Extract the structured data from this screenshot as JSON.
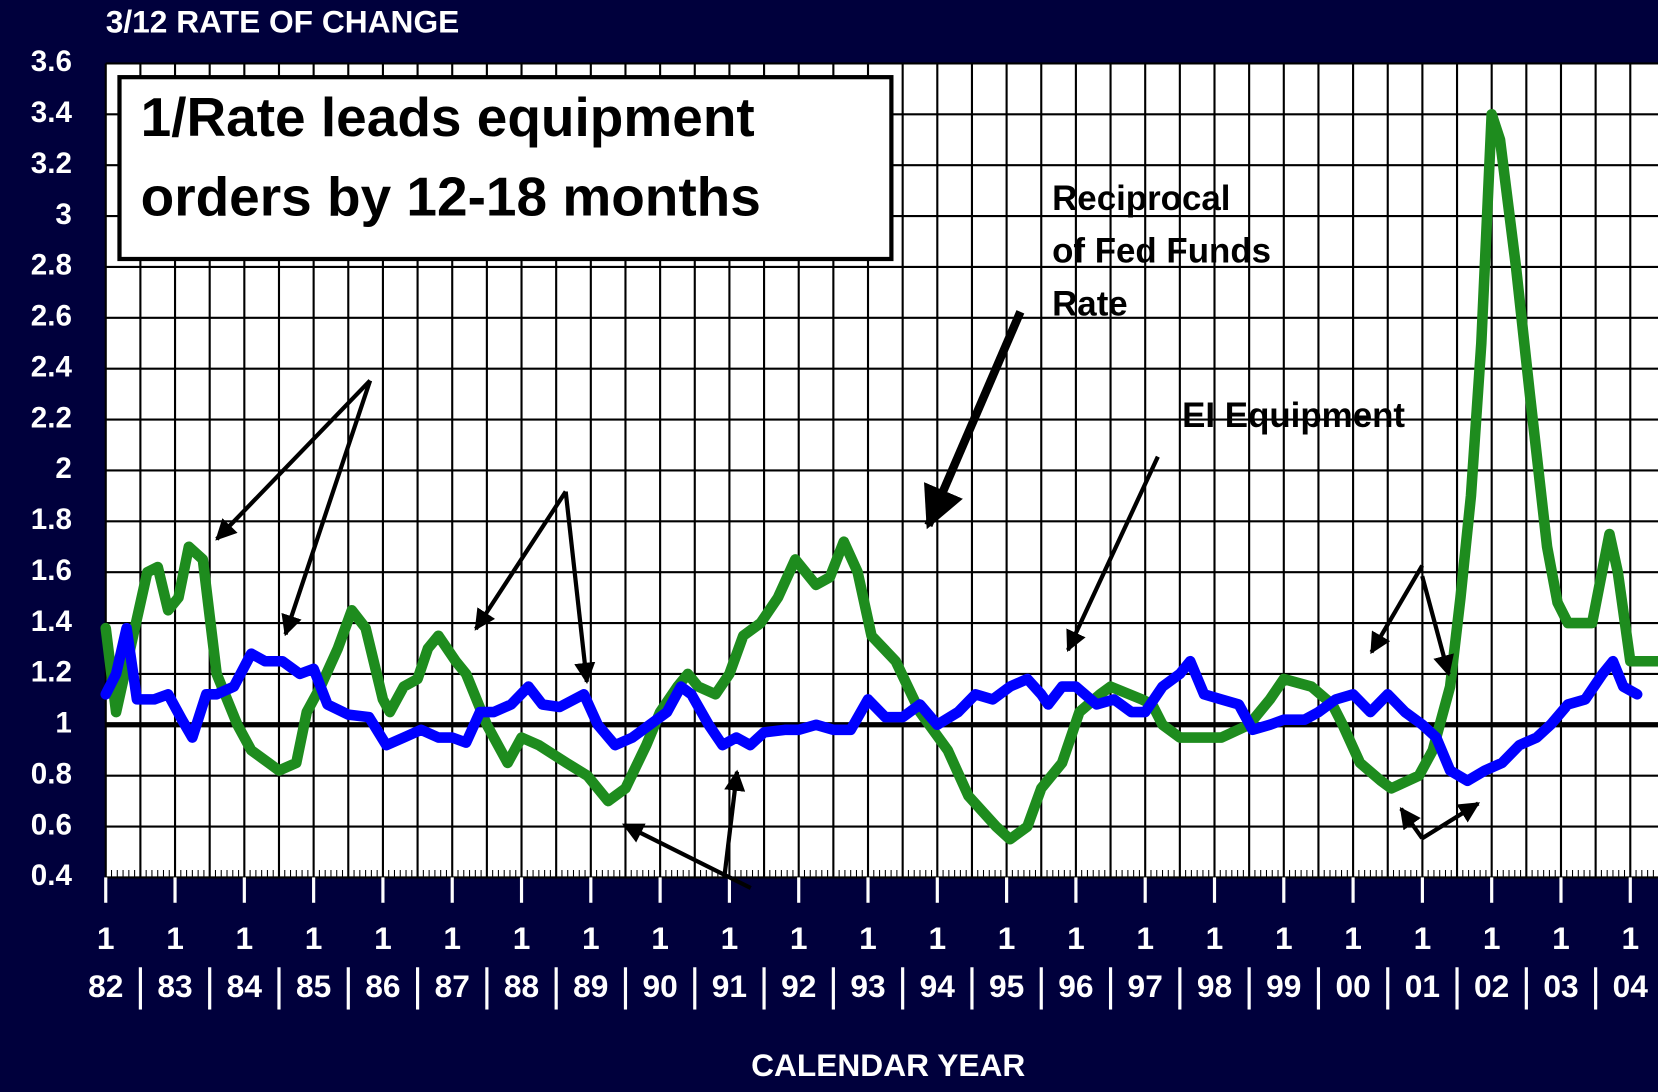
{
  "chart_data": {
    "type": "line",
    "title": "3/12 RATE OF CHANGE",
    "x_label": "CALENDAR YEAR",
    "xtick_month_label": "1",
    "annotation_lines": [
      "1/Rate leads equipment",
      "orders by 12-18 months"
    ],
    "xlim": [
      1982,
      2004.4
    ],
    "xticks": [
      {
        "value": 1982,
        "label": "82"
      },
      {
        "value": 1983,
        "label": "83"
      },
      {
        "value": 1984,
        "label": "84"
      },
      {
        "value": 1985,
        "label": "85"
      },
      {
        "value": 1986,
        "label": "86"
      },
      {
        "value": 1987,
        "label": "87"
      },
      {
        "value": 1988,
        "label": "88"
      },
      {
        "value": 1989,
        "label": "89"
      },
      {
        "value": 1990,
        "label": "90"
      },
      {
        "value": 1991,
        "label": "91"
      },
      {
        "value": 1992,
        "label": "92"
      },
      {
        "value": 1993,
        "label": "93"
      },
      {
        "value": 1994,
        "label": "94"
      },
      {
        "value": 1995,
        "label": "95"
      },
      {
        "value": 1996,
        "label": "96"
      },
      {
        "value": 1997,
        "label": "97"
      },
      {
        "value": 1998,
        "label": "98"
      },
      {
        "value": 1999,
        "label": "99"
      },
      {
        "value": 2000,
        "label": "00"
      },
      {
        "value": 2001,
        "label": "01"
      },
      {
        "value": 2002,
        "label": "02"
      },
      {
        "value": 2003,
        "label": "03"
      },
      {
        "value": 2004,
        "label": "04"
      }
    ],
    "ylim": [
      0.4,
      3.6
    ],
    "yticks": [
      0.4,
      0.6,
      0.8,
      1,
      1.2,
      1.4,
      1.6,
      1.8,
      2,
      2.2,
      2.4,
      2.6,
      2.8,
      3,
      3.2,
      3.4,
      3.6
    ],
    "grid": true,
    "reference_line": 1,
    "series": [
      {
        "name": "Reciprocal of Fed Funds Rate",
        "color": "#1e8c1e",
        "x": [
          1982.0,
          1982.15,
          1982.6,
          1982.75,
          1982.9,
          1983.05,
          1983.2,
          1983.4,
          1983.6,
          1983.9,
          1984.1,
          1984.35,
          1984.5,
          1984.75,
          1984.9,
          1985.1,
          1985.35,
          1985.55,
          1985.75,
          1986.0,
          1986.1,
          1986.3,
          1986.5,
          1986.65,
          1986.8,
          1987.05,
          1987.2,
          1987.5,
          1987.8,
          1988.0,
          1988.25,
          1988.65,
          1988.95,
          1989.25,
          1989.5,
          1989.8,
          1990.0,
          1990.25,
          1990.4,
          1990.55,
          1990.8,
          1991.0,
          1991.2,
          1991.45,
          1991.7,
          1991.95,
          1992.25,
          1992.45,
          1992.65,
          1992.85,
          1993.05,
          1993.4,
          1993.75,
          1994.15,
          1994.45,
          1994.85,
          1995.05,
          1995.3,
          1995.5,
          1995.8,
          1996.05,
          1996.35,
          1996.5,
          1996.95,
          1997.1,
          1997.25,
          1997.5,
          1998.1,
          1998.5,
          1998.8,
          1999.0,
          1999.4,
          1999.7,
          1999.85,
          2000.1,
          2000.4,
          2000.55,
          2000.95,
          2001.15,
          2001.4,
          2001.55,
          2001.7,
          2001.85,
          2002.0,
          2002.12,
          2002.35,
          2002.55,
          2002.8,
          2002.95,
          2003.1,
          2003.45,
          2003.7,
          2003.82,
          2004.0,
          2004.4
        ],
        "values": [
          1.38,
          1.05,
          1.6,
          1.62,
          1.45,
          1.5,
          1.7,
          1.65,
          1.2,
          1.0,
          0.9,
          0.85,
          0.82,
          0.85,
          1.05,
          1.15,
          1.3,
          1.45,
          1.38,
          1.1,
          1.05,
          1.15,
          1.18,
          1.3,
          1.35,
          1.25,
          1.2,
          1.0,
          0.85,
          0.95,
          0.92,
          0.85,
          0.8,
          0.7,
          0.75,
          0.92,
          1.05,
          1.15,
          1.2,
          1.15,
          1.12,
          1.2,
          1.35,
          1.4,
          1.5,
          1.65,
          1.55,
          1.58,
          1.72,
          1.6,
          1.35,
          1.25,
          1.05,
          0.9,
          0.72,
          0.6,
          0.55,
          0.6,
          0.75,
          0.85,
          1.05,
          1.12,
          1.15,
          1.1,
          1.08,
          1.0,
          0.95,
          0.95,
          1.0,
          1.1,
          1.18,
          1.15,
          1.08,
          1.0,
          0.85,
          0.78,
          0.75,
          0.8,
          0.9,
          1.15,
          1.5,
          1.9,
          2.5,
          3.4,
          3.3,
          2.8,
          2.3,
          1.7,
          1.48,
          1.4,
          1.4,
          1.75,
          1.6,
          1.25,
          1.25
        ]
      },
      {
        "name": "EI Equipment",
        "color": "#0000ff",
        "x": [
          1982.0,
          1982.15,
          1982.3,
          1982.45,
          1982.7,
          1982.9,
          1983.1,
          1983.25,
          1983.45,
          1983.6,
          1983.85,
          1984.1,
          1984.3,
          1984.55,
          1984.8,
          1985.0,
          1985.2,
          1985.5,
          1985.8,
          1986.05,
          1986.3,
          1986.55,
          1986.8,
          1987.0,
          1987.2,
          1987.4,
          1987.6,
          1987.85,
          1988.1,
          1988.3,
          1988.55,
          1988.9,
          1989.1,
          1989.35,
          1989.6,
          1989.85,
          1990.1,
          1990.3,
          1990.45,
          1990.7,
          1990.9,
          1991.1,
          1991.3,
          1991.5,
          1991.8,
          1992.0,
          1992.25,
          1992.5,
          1992.75,
          1993.0,
          1993.25,
          1993.5,
          1993.75,
          1994.0,
          1994.3,
          1994.55,
          1994.8,
          1995.05,
          1995.3,
          1995.5,
          1995.6,
          1995.8,
          1996.0,
          1996.3,
          1996.55,
          1996.8,
          1997.0,
          1997.25,
          1997.5,
          1997.65,
          1997.85,
          1998.1,
          1998.35,
          1998.55,
          1998.8,
          1999.0,
          1999.3,
          1999.5,
          1999.75,
          2000.0,
          2000.25,
          2000.5,
          2000.75,
          2001.0,
          2001.2,
          2001.4,
          2001.65,
          2001.9,
          2002.15,
          2002.4,
          2002.65,
          2002.85,
          2003.1,
          2003.35,
          2003.6,
          2003.75,
          2003.9,
          2004.1
        ],
        "values": [
          1.12,
          1.2,
          1.38,
          1.1,
          1.1,
          1.12,
          1.02,
          0.95,
          1.12,
          1.12,
          1.15,
          1.28,
          1.25,
          1.25,
          1.2,
          1.22,
          1.08,
          1.04,
          1.03,
          0.92,
          0.95,
          0.98,
          0.95,
          0.95,
          0.93,
          1.05,
          1.05,
          1.08,
          1.15,
          1.08,
          1.07,
          1.12,
          1.0,
          0.92,
          0.95,
          1.0,
          1.05,
          1.15,
          1.12,
          1.0,
          0.92,
          0.95,
          0.92,
          0.97,
          0.98,
          0.98,
          1.0,
          0.98,
          0.98,
          1.1,
          1.03,
          1.03,
          1.08,
          1.0,
          1.05,
          1.12,
          1.1,
          1.15,
          1.18,
          1.12,
          1.08,
          1.15,
          1.15,
          1.08,
          1.1,
          1.05,
          1.05,
          1.15,
          1.2,
          1.25,
          1.12,
          1.1,
          1.08,
          0.98,
          1.0,
          1.02,
          1.02,
          1.05,
          1.1,
          1.12,
          1.05,
          1.12,
          1.05,
          1.0,
          0.95,
          0.82,
          0.78,
          0.82,
          0.85,
          0.92,
          0.95,
          1.0,
          1.08,
          1.1,
          1.2,
          1.25,
          1.15,
          1.12
        ]
      }
    ]
  }
}
